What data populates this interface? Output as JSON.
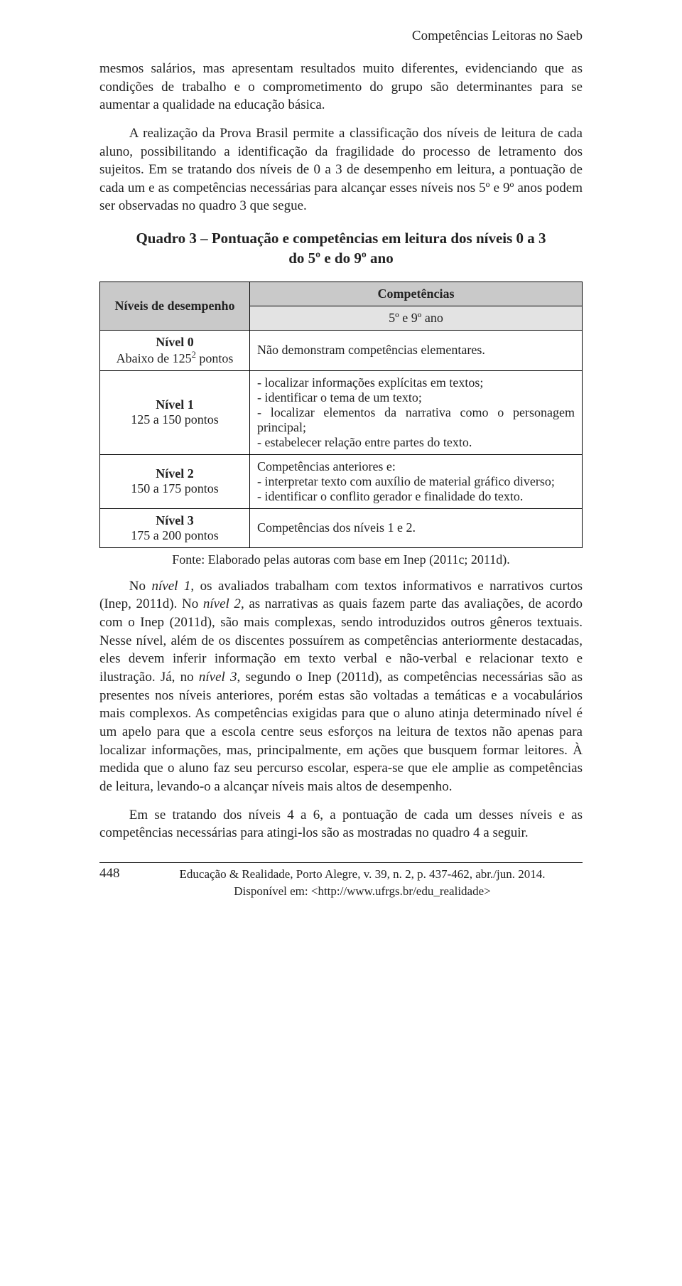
{
  "running_head": "Competências Leitoras no Saeb",
  "paragraphs": {
    "p1": "mesmos salários, mas apresentam resultados muito diferentes, evidenciando que as condições de trabalho e o comprometimento do grupo são determinantes para se aumentar a qualidade na educação básica.",
    "p2": "A realização da Prova Brasil permite a classificação dos níveis de leitura de cada aluno, possibilitando a identificação da fragilidade do processo de letramento dos sujeitos. Em se tratando dos níveis de 0 a 3 de desempenho em leitura, a pontuação de cada um e as competências necessárias para alcançar esses níveis nos 5º e 9º anos podem ser observadas no quadro 3 que segue."
  },
  "quadro_title_l1": "Quadro 3 – Pontuação e competências em leitura dos níveis 0 a 3",
  "quadro_title_l2": "do 5º e do 9º ano",
  "table": {
    "head_left": "Níveis de desempenho",
    "head_right": "Competências",
    "head_sub": "5º e 9º ano",
    "rows": [
      {
        "name": "Nível 0",
        "range_pre": "Abaixo de 125",
        "range_sup": "2",
        "range_post": " pontos",
        "skills": [
          "Não demonstram competências elementares."
        ]
      },
      {
        "name": "Nível 1",
        "range_pre": "125 a 150 pontos",
        "range_sup": "",
        "range_post": "",
        "skills": [
          "- localizar informações explícitas em textos;",
          "- identificar o tema de um texto;",
          "- localizar elementos da narrativa como o personagem principal;",
          "- estabelecer relação entre partes do texto."
        ]
      },
      {
        "name": "Nível 2",
        "range_pre": "150 a 175 pontos",
        "range_sup": "",
        "range_post": "",
        "skills": [
          "Competências anteriores e:",
          "- interpretar texto com auxílio de material gráfico diverso;",
          "- identificar o conflito gerador e finalidade do texto."
        ]
      },
      {
        "name": "Nível 3",
        "range_pre": "175 a 200 pontos",
        "range_sup": "",
        "range_post": "",
        "skills": [
          "Competências dos níveis 1 e 2."
        ]
      }
    ]
  },
  "table_caption": "Fonte: Elaborado pelas autoras com base em Inep (2011c; 2011d).",
  "p3_parts": {
    "t1": "No ",
    "i1": "nível 1",
    "t2": ", os avaliados trabalham com textos informativos e narrativos curtos (Inep, 2011d). No ",
    "i2": "nível 2",
    "t3": ", as narrativas as quais fazem parte das avaliações, de acordo com o Inep (2011d), são mais complexas, sendo introduzidos outros gêneros textuais. Nesse nível, além de os discentes possuírem as competências anteriormente destacadas, eles devem inferir informação em texto verbal e não-verbal e relacionar texto e ilustração. Já, no ",
    "i3": "nível 3",
    "t4": ", segundo o Inep (2011d), as competências necessárias são as presentes nos níveis anteriores, porém estas são voltadas a temáticas e a vocabulários mais complexos. As competências exigidas para que o aluno atinja determinado nível é um apelo para que a escola centre seus esforços na leitura de textos não apenas para localizar informações, mas, principalmente, em ações que busquem formar leitores. À medida que o aluno faz seu percurso escolar, espera-se que ele amplie as competências de leitura, levando-o a alcançar níveis mais altos de desempenho."
  },
  "paragraphs2": {
    "p4": "Em se tratando dos níveis 4 a 6, a pontuação de cada um desses níveis e as competências necessárias para atingi-los são as mostradas no quadro 4 a seguir."
  },
  "footer": {
    "pageno": "448",
    "pub1": "Educação & Realidade, Porto Alegre, v. 39, n. 2, p. 437-462, abr./jun. 2014.",
    "pub2": "Disponível em: <http://www.ufrgs.br/edu_realidade>"
  }
}
